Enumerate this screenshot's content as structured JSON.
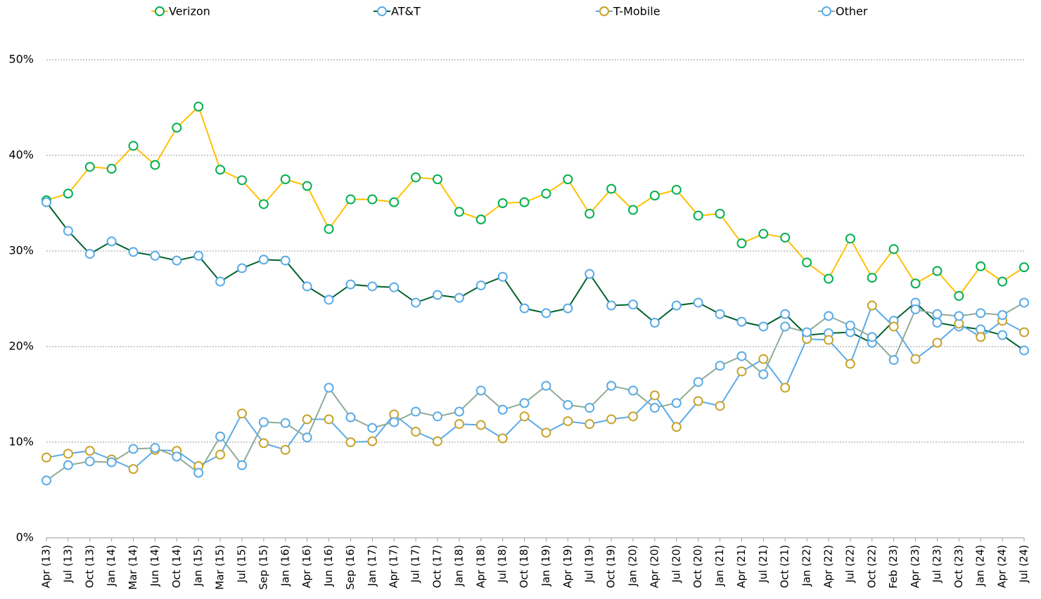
{
  "chart_data": {
    "type": "line",
    "categories": [
      "Apr (13)",
      "Jul (13)",
      "Oct (13)",
      "Jan (14)",
      "Mar (14)",
      "Jun (14)",
      "Oct (14)",
      "Jan (15)",
      "Mar (15)",
      "Jul (15)",
      "Sep (15)",
      "Jan (16)",
      "Apr (16)",
      "Jun (16)",
      "Sep (16)",
      "Jan (17)",
      "Apr (17)",
      "Jul (17)",
      "Oct (17)",
      "Jan (18)",
      "Apr (18)",
      "Jul (18)",
      "Oct (18)",
      "Jan (19)",
      "Apr (19)",
      "Jul (19)",
      "Oct (19)",
      "Jan (20)",
      "Apr (20)",
      "Jul (20)",
      "Oct (20)",
      "Jan (21)",
      "Apr (21)",
      "Jul (21)",
      "Oct (21)",
      "Jan (22)",
      "Apr (22)",
      "Jul (22)",
      "Oct (22)",
      "Feb (23)",
      "Apr (23)",
      "Jul (23)",
      "Oct (23)",
      "Jan (24)",
      "Apr (24)",
      "Jul (24)"
    ],
    "series": [
      {
        "name": "Verizon",
        "color": "#ffc000",
        "marker_color": "#00b050",
        "values": [
          35.3,
          36.0,
          38.8,
          38.6,
          41.0,
          39.0,
          42.9,
          45.1,
          38.5,
          37.4,
          34.9,
          37.5,
          36.8,
          32.3,
          35.4,
          35.4,
          35.1,
          37.7,
          37.5,
          34.1,
          33.3,
          35.0,
          35.1,
          36.0,
          37.5,
          33.9,
          36.5,
          34.3,
          35.8,
          36.4,
          33.7,
          33.9,
          30.8,
          31.8,
          31.4,
          28.8,
          27.1,
          31.3,
          27.2,
          30.2,
          26.6,
          27.9,
          25.3,
          28.4,
          26.8,
          28.3
        ]
      },
      {
        "name": "AT&T",
        "color": "#00612e",
        "marker_color": "#5aabe8",
        "values": [
          35.1,
          32.1,
          29.7,
          31.0,
          29.9,
          29.5,
          29.0,
          29.5,
          26.8,
          28.2,
          29.1,
          29.0,
          26.3,
          24.9,
          26.5,
          26.3,
          26.2,
          24.6,
          25.4,
          25.1,
          26.4,
          27.3,
          24.0,
          23.5,
          24.0,
          27.6,
          24.3,
          24.4,
          22.5,
          24.3,
          24.6,
          23.4,
          22.6,
          22.1,
          23.4,
          21.2,
          21.4,
          21.5,
          20.4,
          22.7,
          24.6,
          22.5,
          22.1,
          21.8,
          21.2,
          19.6
        ]
      },
      {
        "name": "T-Mobile",
        "color": "#5aabe8",
        "marker_color": "#c8a32a",
        "values": [
          8.4,
          8.8,
          9.1,
          8.2,
          7.2,
          9.2,
          9.1,
          7.5,
          8.7,
          13.0,
          9.9,
          9.2,
          12.4,
          12.4,
          10.0,
          10.1,
          12.9,
          11.1,
          10.1,
          11.9,
          11.8,
          10.4,
          12.7,
          11.0,
          12.2,
          11.9,
          12.4,
          12.7,
          14.9,
          11.6,
          14.3,
          13.8,
          17.4,
          18.7,
          15.7,
          20.8,
          20.7,
          18.2,
          24.3,
          22.1,
          18.7,
          20.4,
          22.4,
          21.0,
          22.7,
          21.5
        ]
      },
      {
        "name": "Other",
        "color": "#8fab94",
        "marker_color": "#5aabe8",
        "values": [
          6.0,
          7.6,
          8.0,
          7.9,
          9.3,
          9.4,
          8.5,
          6.8,
          10.6,
          7.6,
          12.1,
          12.0,
          10.5,
          15.7,
          12.6,
          11.5,
          12.1,
          13.2,
          12.7,
          13.2,
          15.4,
          13.4,
          14.1,
          15.9,
          13.9,
          13.6,
          15.9,
          15.4,
          13.6,
          14.1,
          16.3,
          18.0,
          19.0,
          17.1,
          22.1,
          21.5,
          23.2,
          22.2,
          21.0,
          18.6,
          23.9,
          23.4,
          23.2,
          23.5,
          23.3,
          24.6
        ]
      }
    ],
    "ylim": [
      0,
      50
    ],
    "yticks": [
      {
        "value": 0,
        "label": "0%"
      },
      {
        "value": 10,
        "label": "10%"
      },
      {
        "value": 20,
        "label": "20%"
      },
      {
        "value": 30,
        "label": "30%"
      },
      {
        "value": 40,
        "label": "40%"
      },
      {
        "value": 50,
        "label": "50%"
      }
    ],
    "grid": true,
    "legend": "top"
  }
}
